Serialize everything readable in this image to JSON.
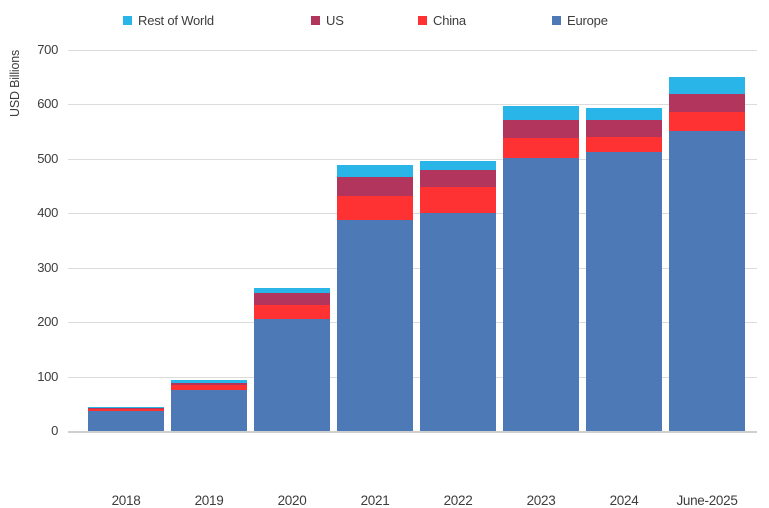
{
  "chart_data": {
    "type": "bar",
    "stacked": true,
    "title": "",
    "xlabel": "",
    "ylabel": "USD Billions",
    "ylim": [
      0,
      700
    ],
    "ytick_step": 100,
    "grid": true,
    "legend_position": "top",
    "legend_order": [
      "Rest of World",
      "US",
      "China",
      "Europe"
    ],
    "categories": [
      "2018",
      "2019",
      "2020",
      "2021",
      "2022",
      "2023",
      "2024",
      "June-2025"
    ],
    "series": [
      {
        "name": "Europe",
        "color": "#4e79b7",
        "values": [
          37,
          75,
          205,
          387,
          400,
          501,
          512,
          551
        ]
      },
      {
        "name": "China",
        "color": "#ff3233",
        "values": [
          4,
          9,
          26,
          45,
          48,
          38,
          29,
          36
        ]
      },
      {
        "name": "US",
        "color": "#b1355c",
        "values": [
          2,
          4,
          23,
          35,
          32,
          33,
          31,
          32
        ]
      },
      {
        "name": "Rest of World",
        "color": "#29b5e8",
        "values": [
          2,
          5,
          9,
          21,
          17,
          25,
          21,
          31
        ]
      }
    ],
    "totals": [
      45,
      93,
      263,
      488,
      497,
      597,
      593,
      650
    ],
    "colors": {
      "europe": "#4e79b7",
      "china": "#ff3233",
      "us": "#b1355c",
      "rest_of_world": "#29b5e8",
      "gridline": "#dcdcdc",
      "text": "#3d3d3d"
    }
  }
}
